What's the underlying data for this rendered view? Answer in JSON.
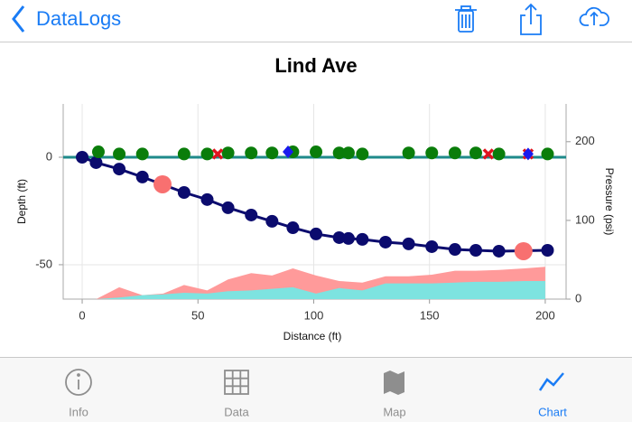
{
  "nav": {
    "back": "DataLogs"
  },
  "chart_data": {
    "type": "scatter",
    "title": "Lind Ave",
    "x_label": "Distance (ft)",
    "y_label": "Depth (ft)",
    "y2_label": "Pressure (psi)",
    "xlim": [
      -8.2,
      209
    ],
    "xticks": [
      0,
      50,
      100,
      150,
      200
    ],
    "ylim": [
      -66,
      24.8
    ],
    "yticks": [
      0,
      -50
    ],
    "y2lim": [
      0,
      248
    ],
    "y2ticks": [
      0,
      100,
      200
    ],
    "grid": true,
    "zero_line_color": "#1e8a8a",
    "series": [
      {
        "color": "#ff9a9a",
        "area": true,
        "axis": "y2",
        "x": [
          6,
          16,
          26,
          35,
          44,
          54,
          63,
          73,
          82,
          91,
          101,
          111,
          121,
          131,
          141,
          151,
          161,
          170,
          180,
          191,
          200
        ],
        "values": [
          0,
          15,
          5,
          7,
          18,
          11,
          25,
          33,
          30,
          39,
          30,
          23,
          21,
          29,
          29,
          31,
          36,
          36,
          37,
          39,
          41
        ]
      },
      {
        "color": "#7de3e0",
        "area": true,
        "axis": "y2",
        "x": [
          6,
          16,
          26,
          35,
          44,
          54,
          63,
          73,
          82,
          91,
          101,
          111,
          121,
          131,
          141,
          151,
          161,
          170,
          180,
          191,
          200
        ],
        "values": [
          0,
          2,
          5,
          6,
          8,
          7,
          10,
          11,
          13,
          15,
          7,
          14,
          11,
          20,
          20,
          20,
          21,
          22,
          22,
          23,
          23
        ]
      },
      {
        "color": "#0b0b6e",
        "marker": "circle",
        "line": true,
        "x": [
          0,
          6,
          16,
          26,
          44,
          54,
          63,
          73,
          82,
          91,
          101,
          111,
          115,
          121,
          131,
          141,
          151,
          161,
          170,
          180,
          201
        ],
        "values": [
          0,
          -2.5,
          -5.5,
          -9.2,
          -16.4,
          -19.7,
          -23.5,
          -26.9,
          -29.8,
          -32.8,
          -35.7,
          -37.4,
          -37.8,
          -38.2,
          -39.5,
          -40.3,
          -41.6,
          -42.9,
          -43.3,
          -43.7,
          -43.3
        ]
      },
      {
        "color": "#0a7d0a",
        "marker": "circle",
        "x": [
          7,
          16,
          26,
          44,
          54,
          63,
          73,
          82,
          91,
          101,
          111,
          115,
          121,
          141,
          151,
          161,
          170,
          180,
          201
        ],
        "values": [
          2.5,
          1.5,
          1.5,
          1.5,
          1.5,
          2,
          2,
          2,
          2.5,
          2.5,
          2,
          2,
          1.5,
          2,
          2,
          2,
          2,
          1.5,
          1.5
        ]
      },
      {
        "color": "#f87070",
        "marker": "big-circle",
        "x": [
          34.7,
          190.6
        ],
        "values": [
          -12.6,
          -43.7
        ]
      },
      {
        "color": "#e0141e",
        "marker": "x",
        "x": [
          58.5,
          175.4,
          192.6
        ],
        "values": [
          1.5,
          1.5,
          1.5
        ]
      },
      {
        "color": "#1a1aee",
        "marker": "diamond",
        "x": [
          88.9,
          192.6
        ],
        "values": [
          2.5,
          1.5
        ]
      }
    ]
  },
  "tabs": [
    "Info",
    "Data",
    "Map",
    "Chart"
  ]
}
